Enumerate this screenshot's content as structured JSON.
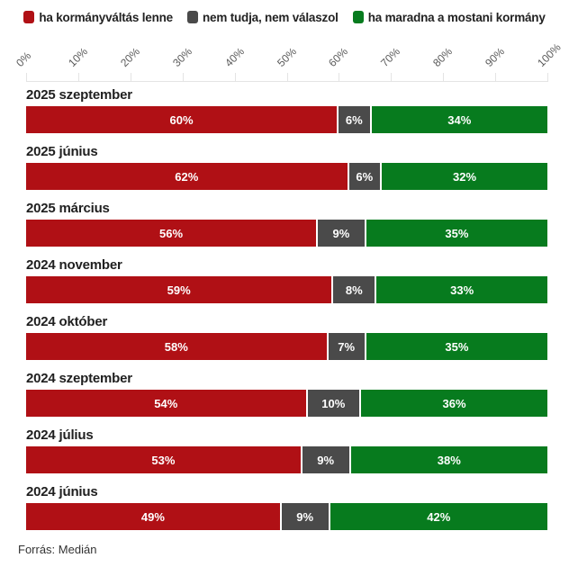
{
  "legend": {
    "items": [
      {
        "label": "ha kormányváltás lenne",
        "color": "#b01015"
      },
      {
        "label": "nem tudja, nem válaszol",
        "color": "#4a4a4a"
      },
      {
        "label": "ha maradna a mostani kormány",
        "color": "#077b1e"
      }
    ]
  },
  "chart_data": {
    "type": "bar",
    "orientation": "horizontal",
    "stacked": true,
    "categories": [
      "2025 szeptember",
      "2025 június",
      "2025 március",
      "2024 november",
      "2024 október",
      "2024 szeptember",
      "2024 július",
      "2024 június"
    ],
    "series": [
      {
        "name": "ha kormányváltás lenne",
        "color": "#b01015",
        "values": [
          60,
          62,
          56,
          59,
          58,
          54,
          53,
          49
        ]
      },
      {
        "name": "nem tudja, nem válaszol",
        "color": "#4a4a4a",
        "values": [
          6,
          6,
          9,
          8,
          7,
          10,
          9,
          9
        ]
      },
      {
        "name": "ha maradna a mostani kormány",
        "color": "#077b1e",
        "values": [
          34,
          32,
          35,
          33,
          35,
          36,
          38,
          42
        ]
      }
    ],
    "xlim": [
      0,
      100
    ],
    "x_ticks": [
      "0%",
      "10%",
      "20%",
      "30%",
      "40%",
      "50%",
      "60%",
      "70%",
      "80%",
      "90%",
      "100%"
    ],
    "value_suffix": "%",
    "grid": false,
    "legend_position": "top"
  },
  "footer": {
    "source": "Forrás: Medián"
  }
}
